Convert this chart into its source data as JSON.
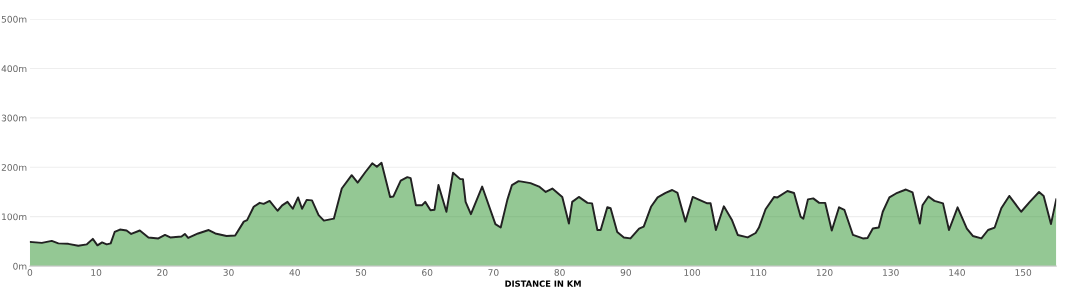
{
  "chart_data": {
    "type": "area",
    "xlabel": "DISTANCE IN KM",
    "x": [
      0,
      1.8,
      3.3,
      4.3,
      5.8,
      7.3,
      8.6,
      9.5,
      10.2,
      10.9,
      11.6,
      12.2,
      12.8,
      13.6,
      14.6,
      15.3,
      16.6,
      17.9,
      19.4,
      20.4,
      21.2,
      22.9,
      23.4,
      23.9,
      25.4,
      27,
      28,
      29.7,
      31,
      32.3,
      32.8,
      33.8,
      34.7,
      35.3,
      36.2,
      37.4,
      38.1,
      38.9,
      39.7,
      40.5,
      41.1,
      41.8,
      42.6,
      43.6,
      44.4,
      45.9,
      47.1,
      48.6,
      49.5,
      50.7,
      51.7,
      52.4,
      53.1,
      54.4,
      54.9,
      56,
      57,
      57.5,
      58.3,
      59.2,
      59.7,
      60.5,
      61.1,
      61.7,
      62.9,
      63.9,
      65,
      65.4,
      65.8,
      66.6,
      68.3,
      70.3,
      71.1,
      72.1,
      72.8,
      73.8,
      74.3,
      75.6,
      76.9,
      77.9,
      78.9,
      80.4,
      81.4,
      81.9,
      82.9,
      84.2,
      84.9,
      85.7,
      86.2,
      87.2,
      87.7,
      88.7,
      89.7,
      90.7,
      92,
      92.7,
      93.8,
      94.8,
      96,
      97,
      97.8,
      99,
      100.1,
      101.1,
      102.3,
      102.8,
      103.6,
      104.8,
      106,
      106.9,
      108.4,
      109.6,
      110.1,
      111.1,
      112.4,
      112.9,
      114.4,
      115.4,
      116.4,
      116.8,
      117.5,
      118.3,
      119.2,
      120.1,
      121.1,
      122.2,
      123,
      124.3,
      125.8,
      126.5,
      127.3,
      128.2,
      128.8,
      129.8,
      130.8,
      132.3,
      133.3,
      134.4,
      134.8,
      135.7,
      136.6,
      137.9,
      138.8,
      140.1,
      141.5,
      142.4,
      143.7,
      144.7,
      145.7,
      146.7,
      147.9,
      148.7,
      149.7,
      151,
      152.4,
      153.1,
      154.2,
      155
    ],
    "series": [
      {
        "color": "#3d9a3d",
        "values": [
          49,
          47,
          51,
          46,
          45,
          41,
          44,
          55,
          42,
          48,
          44,
          46,
          69,
          74,
          72,
          65,
          72,
          58,
          56,
          63,
          58,
          60,
          65,
          57,
          66,
          73,
          66,
          61,
          62,
          90,
          93,
          120,
          128,
          126,
          132,
          112,
          123,
          130,
          116,
          139,
          116,
          134,
          133,
          103,
          92,
          96,
          157,
          184,
          169,
          191,
          208,
          201,
          209,
          140,
          141,
          173,
          180,
          178,
          123,
          123,
          130,
          113,
          114,
          164,
          110,
          189,
          176,
          176,
          130,
          105,
          161,
          85,
          78,
          134,
          164,
          172,
          171,
          168,
          161,
          150,
          157,
          140,
          86,
          130,
          140,
          128,
          127,
          73,
          73,
          119,
          117,
          69,
          58,
          56,
          76,
          80,
          120,
          139,
          148,
          154,
          148,
          90,
          140,
          134,
          127,
          127,
          73,
          121,
          94,
          63,
          58,
          67,
          78,
          115,
          140,
          139,
          152,
          148,
          100,
          96,
          135,
          137,
          128,
          128,
          72,
          119,
          114,
          63,
          56,
          57,
          76,
          78,
          110,
          139,
          147,
          155,
          149,
          86,
          123,
          141,
          132,
          127,
          73,
          119,
          76,
          61,
          56,
          73,
          78,
          117,
          142,
          128,
          110,
          130,
          150,
          142,
          85,
          135
        ]
      }
    ],
    "xlim": [
      0,
      155
    ],
    "ylim": [
      0,
      500
    ],
    "xticks": [
      0,
      10,
      20,
      30,
      40,
      50,
      60,
      70,
      80,
      90,
      100,
      110,
      120,
      130,
      140,
      150
    ],
    "yticks": [
      {
        "value": 0,
        "label": "0m"
      },
      {
        "value": 100,
        "label": "100m"
      },
      {
        "value": 200,
        "label": "200m"
      },
      {
        "value": 300,
        "label": "300m"
      },
      {
        "value": 400,
        "label": "400m"
      },
      {
        "value": 500,
        "label": "500m"
      }
    ],
    "grid": "y",
    "legend": false,
    "marker": "none",
    "line_style": "solid"
  }
}
